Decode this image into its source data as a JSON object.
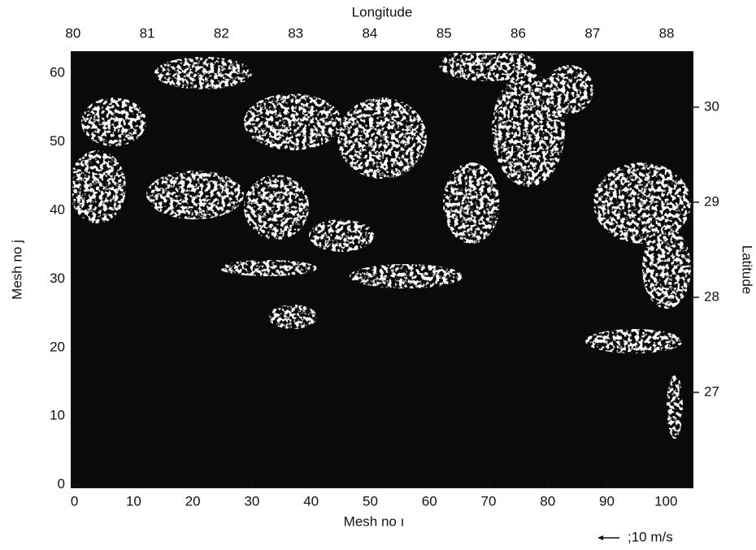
{
  "chart_data": {
    "type": "vector-field",
    "xlabel": "Mesh no ı",
    "ylabel": "Mesh no j",
    "x2label": "Longitude",
    "y2label": "Latitude",
    "xlim": [
      -0.5,
      104.5
    ],
    "xticks": [
      0,
      10,
      20,
      30,
      40,
      50,
      60,
      70,
      80,
      90,
      100
    ],
    "ylim": [
      -0.4,
      63.1
    ],
    "yticks": [
      0,
      10,
      20,
      30,
      40,
      50,
      60
    ],
    "x2lim": [
      79.98,
      88.35
    ],
    "x2ticks": [
      80,
      81,
      82,
      83,
      84,
      85,
      86,
      87,
      88
    ],
    "y2lim": [
      26.0,
      30.58
    ],
    "y2ticks": [
      27,
      28,
      29,
      30
    ],
    "annotation": ";10 m/s"
  }
}
